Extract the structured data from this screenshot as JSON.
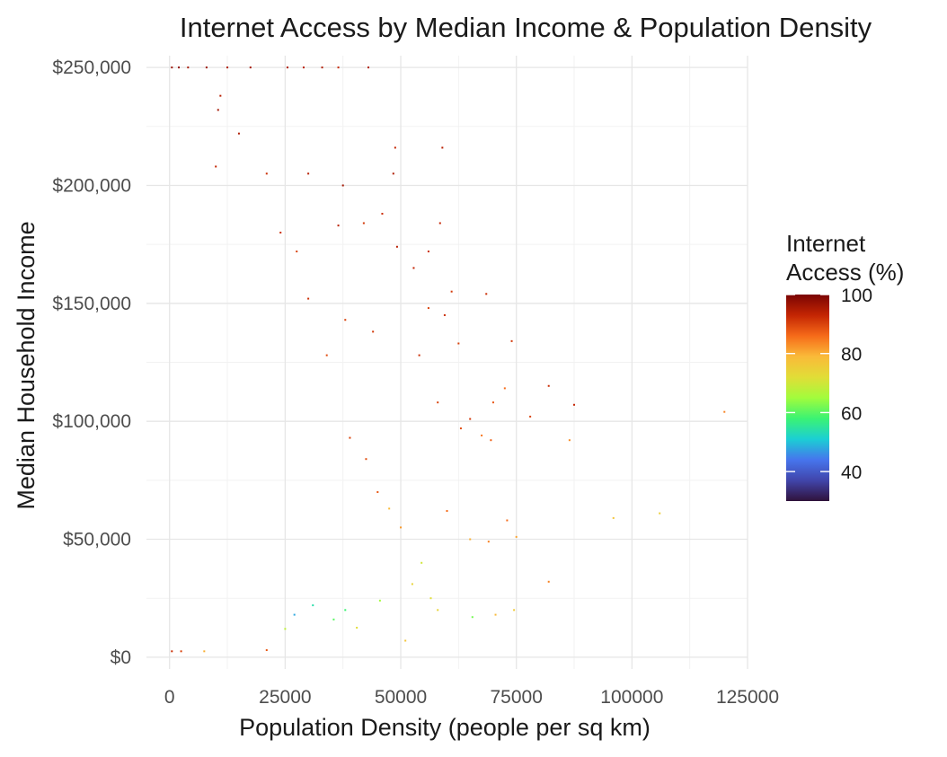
{
  "chart_data": {
    "type": "scatter",
    "title": "Internet Access by Median Income & Population Density",
    "xlabel": "Population Density (people per sq km)",
    "ylabel": "Median Household Income",
    "xlim": [
      -5000,
      125000
    ],
    "ylim": [
      -5000,
      255000
    ],
    "x_ticks": [
      0,
      25000,
      50000,
      75000,
      100000,
      125000
    ],
    "x_tick_labels": [
      "0",
      "25000",
      "50000",
      "75000",
      "100000",
      "125000"
    ],
    "y_ticks": [
      0,
      50000,
      100000,
      150000,
      200000,
      250000
    ],
    "y_tick_labels": [
      "$0",
      "$50,000",
      "$100,000",
      "$150,000",
      "$200,000",
      "$250,000"
    ],
    "grid": true,
    "legend": {
      "title_lines": [
        "Internet",
        "Access (%)"
      ],
      "position": "right",
      "type": "colorbar",
      "range": [
        30,
        100
      ],
      "ticks": [
        40,
        60,
        80,
        100
      ],
      "tick_labels": [
        "40",
        "60",
        "80",
        "100"
      ]
    },
    "color_scale": {
      "name": "turbo",
      "stops": [
        {
          "value": 30,
          "color": "#30123b"
        },
        {
          "value": 37,
          "color": "#4145ab"
        },
        {
          "value": 44,
          "color": "#4675ed"
        },
        {
          "value": 51,
          "color": "#1bcfd4"
        },
        {
          "value": 58,
          "color": "#3bf373"
        },
        {
          "value": 65,
          "color": "#a2fc3c"
        },
        {
          "value": 72,
          "color": "#e1dd37"
        },
        {
          "value": 79,
          "color": "#faba39"
        },
        {
          "value": 86,
          "color": "#f66b19"
        },
        {
          "value": 93,
          "color": "#c42503"
        },
        {
          "value": 100,
          "color": "#7a0403"
        }
      ]
    },
    "points": [
      {
        "x": 500,
        "y": 250000,
        "access": 97
      },
      {
        "x": 2000,
        "y": 250000,
        "access": 98
      },
      {
        "x": 4000,
        "y": 250000,
        "access": 96
      },
      {
        "x": 8000,
        "y": 250000,
        "access": 97
      },
      {
        "x": 12500,
        "y": 250000,
        "access": 95
      },
      {
        "x": 17500,
        "y": 250000,
        "access": 96
      },
      {
        "x": 25500,
        "y": 250000,
        "access": 95
      },
      {
        "x": 29000,
        "y": 250000,
        "access": 94
      },
      {
        "x": 33000,
        "y": 250000,
        "access": 95
      },
      {
        "x": 36500,
        "y": 250000,
        "access": 93
      },
      {
        "x": 43000,
        "y": 250000,
        "access": 95
      },
      {
        "x": 11000,
        "y": 238000,
        "access": 94
      },
      {
        "x": 10500,
        "y": 232000,
        "access": 96
      },
      {
        "x": 15000,
        "y": 222000,
        "access": 95
      },
      {
        "x": 10000,
        "y": 208000,
        "access": 93
      },
      {
        "x": 21000,
        "y": 205000,
        "access": 92
      },
      {
        "x": 30000,
        "y": 205000,
        "access": 94
      },
      {
        "x": 37500,
        "y": 200000,
        "access": 96
      },
      {
        "x": 48800,
        "y": 216000,
        "access": 93
      },
      {
        "x": 48400,
        "y": 205000,
        "access": 95
      },
      {
        "x": 59000,
        "y": 216000,
        "access": 94
      },
      {
        "x": 46000,
        "y": 188000,
        "access": 92
      },
      {
        "x": 58500,
        "y": 184000,
        "access": 93
      },
      {
        "x": 42000,
        "y": 184000,
        "access": 91
      },
      {
        "x": 36500,
        "y": 183000,
        "access": 94
      },
      {
        "x": 24000,
        "y": 180000,
        "access": 92
      },
      {
        "x": 27500,
        "y": 172000,
        "access": 90
      },
      {
        "x": 49200,
        "y": 174000,
        "access": 94
      },
      {
        "x": 56000,
        "y": 172000,
        "access": 92
      },
      {
        "x": 52800,
        "y": 165000,
        "access": 93
      },
      {
        "x": 61000,
        "y": 155000,
        "access": 91
      },
      {
        "x": 68500,
        "y": 154000,
        "access": 92
      },
      {
        "x": 56000,
        "y": 148000,
        "access": 90
      },
      {
        "x": 59500,
        "y": 145000,
        "access": 92
      },
      {
        "x": 74000,
        "y": 134000,
        "access": 91
      },
      {
        "x": 62500,
        "y": 133000,
        "access": 90
      },
      {
        "x": 54000,
        "y": 128000,
        "access": 92
      },
      {
        "x": 44000,
        "y": 138000,
        "access": 91
      },
      {
        "x": 38000,
        "y": 143000,
        "access": 90
      },
      {
        "x": 30000,
        "y": 152000,
        "access": 92
      },
      {
        "x": 34000,
        "y": 128000,
        "access": 89
      },
      {
        "x": 82000,
        "y": 115000,
        "access": 92
      },
      {
        "x": 87500,
        "y": 107000,
        "access": 93
      },
      {
        "x": 72500,
        "y": 114000,
        "access": 86
      },
      {
        "x": 78000,
        "y": 102000,
        "access": 90
      },
      {
        "x": 70000,
        "y": 108000,
        "access": 88
      },
      {
        "x": 65000,
        "y": 101000,
        "access": 91
      },
      {
        "x": 58000,
        "y": 108000,
        "access": 90
      },
      {
        "x": 67500,
        "y": 94000,
        "access": 85
      },
      {
        "x": 63000,
        "y": 97000,
        "access": 89
      },
      {
        "x": 69500,
        "y": 92000,
        "access": 87
      },
      {
        "x": 86500,
        "y": 92000,
        "access": 83
      },
      {
        "x": 120000,
        "y": 104000,
        "access": 84
      },
      {
        "x": 106000,
        "y": 61000,
        "access": 75
      },
      {
        "x": 96000,
        "y": 59000,
        "access": 77
      },
      {
        "x": 75000,
        "y": 51000,
        "access": 81
      },
      {
        "x": 73000,
        "y": 58000,
        "access": 86
      },
      {
        "x": 69000,
        "y": 49000,
        "access": 84
      },
      {
        "x": 65000,
        "y": 50000,
        "access": 80
      },
      {
        "x": 82000,
        "y": 32000,
        "access": 84
      },
      {
        "x": 74500,
        "y": 20000,
        "access": 76
      },
      {
        "x": 70500,
        "y": 18000,
        "access": 79
      },
      {
        "x": 65500,
        "y": 17000,
        "access": 62
      },
      {
        "x": 58000,
        "y": 20000,
        "access": 74
      },
      {
        "x": 51000,
        "y": 7000,
        "access": 77
      },
      {
        "x": 21000,
        "y": 3000,
        "access": 88
      },
      {
        "x": 7500,
        "y": 2500,
        "access": 80
      },
      {
        "x": 500,
        "y": 2500,
        "access": 92
      },
      {
        "x": 2500,
        "y": 2500,
        "access": 90
      },
      {
        "x": 60000,
        "y": 62000,
        "access": 86
      },
      {
        "x": 56500,
        "y": 25000,
        "access": 72
      },
      {
        "x": 54500,
        "y": 40000,
        "access": 70
      },
      {
        "x": 50000,
        "y": 55000,
        "access": 82
      },
      {
        "x": 45000,
        "y": 70000,
        "access": 88
      },
      {
        "x": 42500,
        "y": 84000,
        "access": 89
      },
      {
        "x": 39000,
        "y": 93000,
        "access": 90
      },
      {
        "x": 47500,
        "y": 63000,
        "access": 79
      },
      {
        "x": 52500,
        "y": 31000,
        "access": 74
      },
      {
        "x": 45500,
        "y": 24000,
        "access": 65
      },
      {
        "x": 40500,
        "y": 12500,
        "access": 72
      },
      {
        "x": 38000,
        "y": 20000,
        "access": 58
      },
      {
        "x": 35500,
        "y": 16000,
        "access": 60
      },
      {
        "x": 31000,
        "y": 22000,
        "access": 54
      },
      {
        "x": 27000,
        "y": 18000,
        "access": 48
      },
      {
        "x": 25000,
        "y": 12000,
        "access": 68
      }
    ]
  }
}
